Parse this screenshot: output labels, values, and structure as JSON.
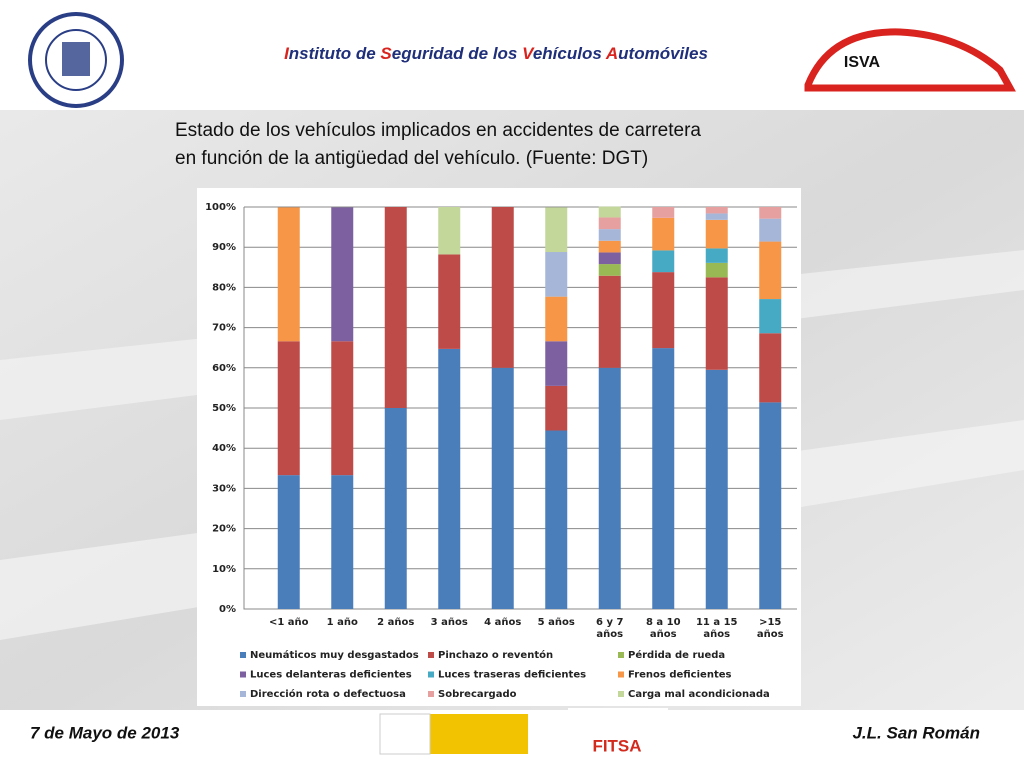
{
  "header": {
    "title_parts": [
      "I",
      "nstituto de ",
      "S",
      "eguridad de los ",
      "V",
      "ehículos ",
      "A",
      "utomóviles"
    ],
    "logo_right": "ISVA",
    "sponsor": "FITSA"
  },
  "footer": {
    "date": "7 de Mayo de 2013",
    "author": "J.L. San Román"
  },
  "chart_data": {
    "type": "stacked_bar",
    "title": [
      "Estado de los vehículos implicados en accidentes de carretera",
      "en función de la antigüedad del vehículo. (Fuente: DGT)"
    ],
    "categories": [
      "<1 año",
      "1 año",
      "2 años",
      "3 años",
      "4 años",
      "5 años",
      "6 y 7 años",
      "8 a 10 años",
      "11 a 15 años",
      ">15 años"
    ],
    "series": [
      {
        "name": "Neumáticos muy desgastados",
        "color": "#4a7ebb",
        "values": [
          33.3,
          33.3,
          50,
          64.7,
          60,
          44.4,
          60,
          64.9,
          59.5,
          51.4
        ]
      },
      {
        "name": "Pinchazo o reventón",
        "color": "#be4b48",
        "values": [
          33.3,
          33.3,
          50,
          23.5,
          40,
          11.1,
          22.9,
          18.9,
          23,
          17.2
        ]
      },
      {
        "name": "Pérdida de rueda",
        "color": "#98b954",
        "values": [
          0,
          0,
          0,
          0,
          0,
          0,
          2.9,
          0,
          3.6,
          0
        ]
      },
      {
        "name": "Luces delanteras deficientes",
        "color": "#7d60a0",
        "values": [
          0,
          33.3,
          0,
          0,
          0,
          11.1,
          2.9,
          0,
          0,
          0
        ]
      },
      {
        "name": "Luces traseras deficientes",
        "color": "#46aac5",
        "values": [
          0,
          0,
          0,
          0,
          0,
          0,
          0,
          5.4,
          3.6,
          8.5
        ]
      },
      {
        "name": "Frenos deficientes",
        "color": "#f79646",
        "values": [
          33.3,
          0,
          0,
          0,
          0,
          11.1,
          2.9,
          8.1,
          7.1,
          14.3
        ]
      },
      {
        "name": "Dirección rota o defectuosa",
        "color": "#a5b6d8",
        "values": [
          0,
          0,
          0,
          0,
          0,
          11.1,
          2.9,
          0,
          1.6,
          5.7
        ]
      },
      {
        "name": "Sobrecargado",
        "color": "#e6a0a0",
        "values": [
          0,
          0,
          0,
          0,
          0,
          0,
          2.9,
          2.7,
          1.6,
          2.9
        ]
      },
      {
        "name": "Carga mal acondicionada",
        "color": "#c4d79b",
        "values": [
          0,
          0,
          0,
          11.8,
          0,
          11.1,
          2.7,
          0,
          0,
          0
        ]
      }
    ],
    "ylim": [
      0,
      100
    ],
    "yticks": [
      {
        "value": 0,
        "label": "0%"
      },
      {
        "value": 10,
        "label": "10%"
      },
      {
        "value": 20,
        "label": "20%"
      },
      {
        "value": 30,
        "label": "30%"
      },
      {
        "value": 40,
        "label": "40%"
      },
      {
        "value": 50,
        "label": "50%"
      },
      {
        "value": 60,
        "label": "60%"
      },
      {
        "value": 70,
        "label": "70%"
      },
      {
        "value": 80,
        "label": "80%"
      },
      {
        "value": 90,
        "label": "90%"
      },
      {
        "value": 100,
        "label": "100%"
      }
    ],
    "grid": true
  }
}
